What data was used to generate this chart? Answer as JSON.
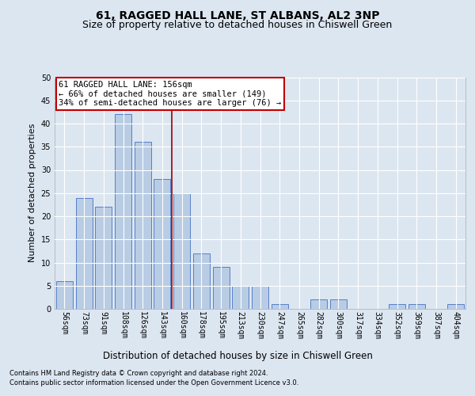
{
  "title": "61, RAGGED HALL LANE, ST ALBANS, AL2 3NP",
  "subtitle": "Size of property relative to detached houses in Chiswell Green",
  "xlabel": "Distribution of detached houses by size in Chiswell Green",
  "ylabel": "Number of detached properties",
  "categories": [
    "56sqm",
    "73sqm",
    "91sqm",
    "108sqm",
    "126sqm",
    "143sqm",
    "160sqm",
    "178sqm",
    "195sqm",
    "213sqm",
    "230sqm",
    "247sqm",
    "265sqm",
    "282sqm",
    "300sqm",
    "317sqm",
    "334sqm",
    "352sqm",
    "369sqm",
    "387sqm",
    "404sqm"
  ],
  "values": [
    6,
    24,
    22,
    42,
    36,
    28,
    25,
    12,
    9,
    5,
    5,
    1,
    0,
    2,
    2,
    0,
    0,
    1,
    1,
    0,
    1
  ],
  "bar_color": "#b8cce4",
  "bar_edge_color": "#4472c4",
  "background_color": "#dce6f1",
  "plot_bg_color": "#dce6f1",
  "grid_color": "#ffffff",
  "vline_x_index": 6,
  "vline_color": "#9b0000",
  "annotation_text": "61 RAGGED HALL LANE: 156sqm\n← 66% of detached houses are smaller (149)\n34% of semi-detached houses are larger (76) →",
  "annotation_box_color": "#c00000",
  "ylim": [
    0,
    50
  ],
  "yticks": [
    0,
    5,
    10,
    15,
    20,
    25,
    30,
    35,
    40,
    45,
    50
  ],
  "footer_line1": "Contains HM Land Registry data © Crown copyright and database right 2024.",
  "footer_line2": "Contains public sector information licensed under the Open Government Licence v3.0.",
  "title_fontsize": 10,
  "subtitle_fontsize": 9,
  "tick_fontsize": 7,
  "ylabel_fontsize": 8,
  "xlabel_fontsize": 8.5,
  "annotation_fontsize": 7.5,
  "footer_fontsize": 6
}
